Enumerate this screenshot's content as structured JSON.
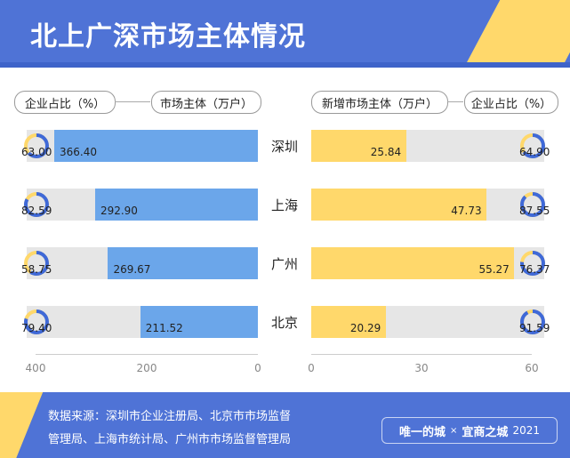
{
  "header": {
    "title": "北上广深市场主体情况"
  },
  "legend": {
    "left_pct": "企业占比（%）",
    "left_count": "市场主体（万户）",
    "right_new": "新增市场主体（万户）",
    "right_pct": "企业占比（%）"
  },
  "footer": {
    "source_line1": "数据来源：深圳市企业注册局、北京市市场监督",
    "source_line2": "管理局、上海市统计局、广州市市场监督管理局",
    "brand_a": "唯一的城",
    "brand_sep": "×",
    "brand_b": "宜商之城",
    "brand_year": "2021"
  },
  "colors": {
    "blue_bar": "#6ba6ea",
    "yellow_bar": "#ffd86b",
    "track": "#e6e6e6",
    "accent": "#4f73d6"
  },
  "chart_data": [
    {
      "type": "bar",
      "orientation": "horizontal-reversed",
      "categories": [
        "深圳",
        "上海",
        "广州",
        "北京"
      ],
      "series": [
        {
          "name": "市场主体（万户）",
          "values": [
            366.4,
            292.9,
            269.67,
            211.52
          ]
        }
      ],
      "xlim": [
        0,
        400
      ],
      "xticks": [
        "400",
        "200",
        "0"
      ],
      "donut_series": {
        "name": "企业占比（%）",
        "values": [
          63.0,
          82.59,
          58.75,
          79.4
        ]
      }
    },
    {
      "type": "bar",
      "orientation": "horizontal",
      "categories": [
        "深圳",
        "上海",
        "广州",
        "北京"
      ],
      "series": [
        {
          "name": "新增市场主体（万户）",
          "values": [
            25.84,
            47.73,
            55.27,
            20.29
          ]
        }
      ],
      "xlim": [
        0,
        60
      ],
      "xticks": [
        "0",
        "30",
        "60"
      ],
      "donut_series": {
        "name": "企业占比（%）",
        "values": [
          64.9,
          87.55,
          76.37,
          91.59
        ]
      }
    }
  ]
}
